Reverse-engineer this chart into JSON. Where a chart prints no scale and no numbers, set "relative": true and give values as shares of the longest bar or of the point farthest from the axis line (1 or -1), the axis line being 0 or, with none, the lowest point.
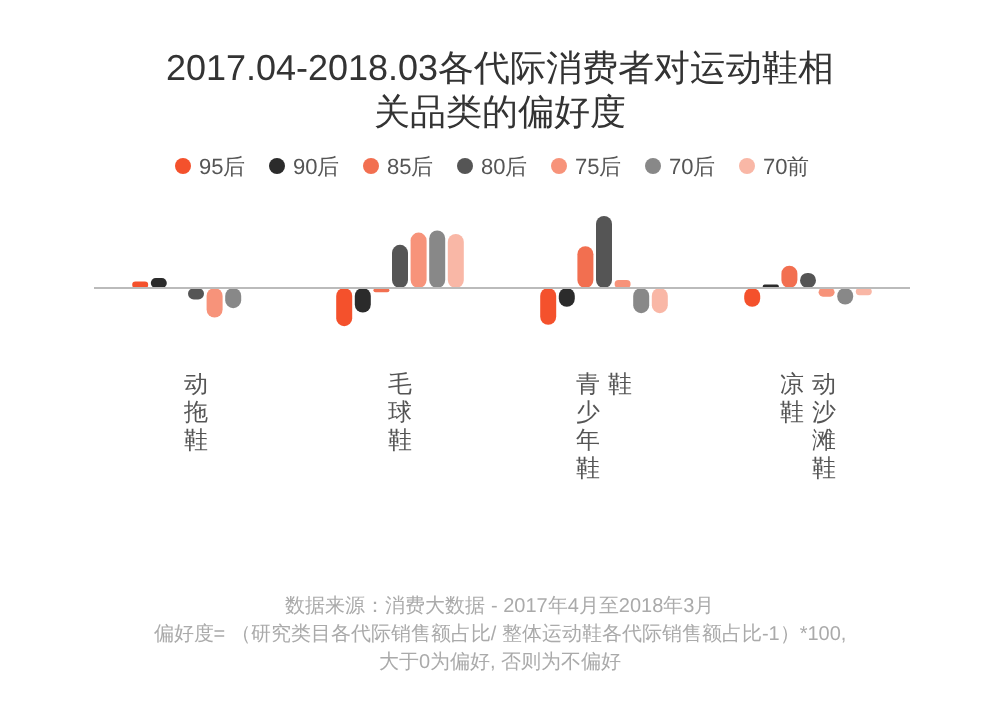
{
  "chart_data": {
    "type": "bar",
    "title": "2017.04-2018.03各代际消费者对运动鞋相关品类的偏好度",
    "categories": [
      "动拖鞋",
      "毛球鞋",
      "青少年鞋",
      "凉鞋"
    ],
    "relative": true,
    "legend": "top",
    "series": [
      {
        "name": "95后",
        "color": "#f4512c",
        "values": [
          0.09,
          -0.53,
          -0.51,
          -0.26
        ]
      },
      {
        "name": "90后",
        "color": "#2b2b2b",
        "values": [
          0.14,
          -0.34,
          -0.26,
          0.05
        ]
      },
      {
        "name": "85后",
        "color": "#f26f50",
        "values": [
          null,
          -0.06,
          0.58,
          0.31
        ]
      },
      {
        "name": "80后",
        "color": "#555555",
        "values": [
          -0.16,
          0.6,
          1,
          0.21
        ]
      },
      {
        "name": "75后",
        "color": "#f7937a",
        "values": [
          -0.41,
          0.77,
          0.11,
          -0.12
        ]
      },
      {
        "name": "70后",
        "color": "#888888",
        "values": [
          -0.28,
          0.8,
          -0.35,
          -0.23
        ]
      },
      {
        "name": "70前",
        "color": "#f9b7a6",
        "values": [
          null,
          0.75,
          -0.35,
          -0.1
        ]
      }
    ],
    "annotations": [
      "数据来源：消费大数据 - 2017年4月至2018年3月",
      "偏好度= （研究类目各代际销售额占比/ 整体运动鞋各代际销售额占比-1）*100,",
      "大于0为偏好, 否则为不偏好",
      "鞋",
      "动沙滩鞋"
    ]
  }
}
